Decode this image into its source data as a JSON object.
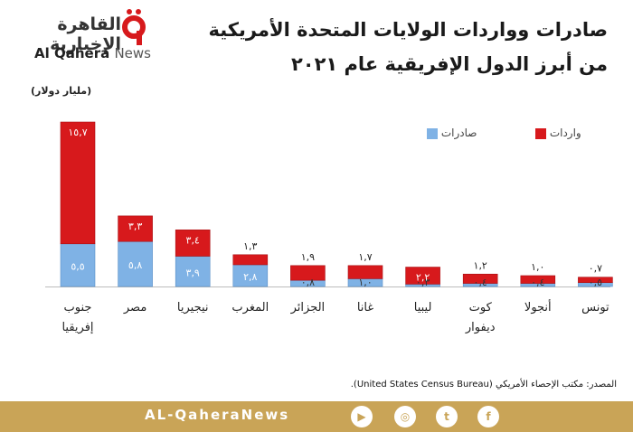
{
  "logo": {
    "arabic": "القاهرة الإخبارية",
    "english_main": "Al Qahera",
    "english_news": "News"
  },
  "title_line1": "صادرات وواردات الولايات المتحدة الأمريكية",
  "title_line2": "من أبرز الدول الإفريقية عام ٢٠٢١",
  "unit_label": "(مليار دولار)",
  "legend": {
    "imports": "واردات",
    "exports": "صادرات"
  },
  "colors": {
    "imports": "#d7191c",
    "exports": "#7fb2e5",
    "footer": "#c9a457"
  },
  "chart_data": {
    "type": "bar",
    "stacked": true,
    "categories": [
      "جنوب إفريقيا",
      "مصر",
      "نيجيريا",
      "المغرب",
      "الجزائر",
      "غانا",
      "ليبيا",
      "كوت ديفوار",
      "أنجولا",
      "تونس"
    ],
    "series": [
      {
        "name": "صادرات",
        "values": [
          5.5,
          5.8,
          3.9,
          2.8,
          0.8,
          1.0,
          0.3,
          0.4,
          0.4,
          0.5
        ],
        "labels": [
          "٥,٥",
          "٥,٨",
          "٣,٩",
          "٢,٨",
          "٠,٨",
          "١,٠",
          "٠,٣",
          "٠,٤",
          "٠,٤",
          "٠,٥"
        ]
      },
      {
        "name": "واردات",
        "values": [
          15.7,
          3.3,
          3.4,
          1.3,
          1.9,
          1.7,
          2.2,
          1.2,
          1.0,
          0.7
        ],
        "labels": [
          "١٥,٧",
          "٣,٣",
          "٣,٤",
          "١,٣",
          "١,٩",
          "١,٧",
          "٢,٢",
          "١,٢",
          "١,٠",
          "٠,٧"
        ]
      }
    ],
    "ylim": [
      0,
      21.2
    ],
    "legend_position": "top-right",
    "grid": false
  },
  "source": "المصدر: مكتب الإحصاء الأمريكي (United States Census Bureau).",
  "footer": {
    "site": "AL-QaheraNews",
    "social": [
      {
        "icon": "facebook-icon",
        "glyph": "f"
      },
      {
        "icon": "twitter-icon",
        "glyph": "t"
      },
      {
        "icon": "instagram-icon",
        "glyph": "◎"
      },
      {
        "icon": "youtube-icon",
        "glyph": "▶"
      }
    ]
  }
}
